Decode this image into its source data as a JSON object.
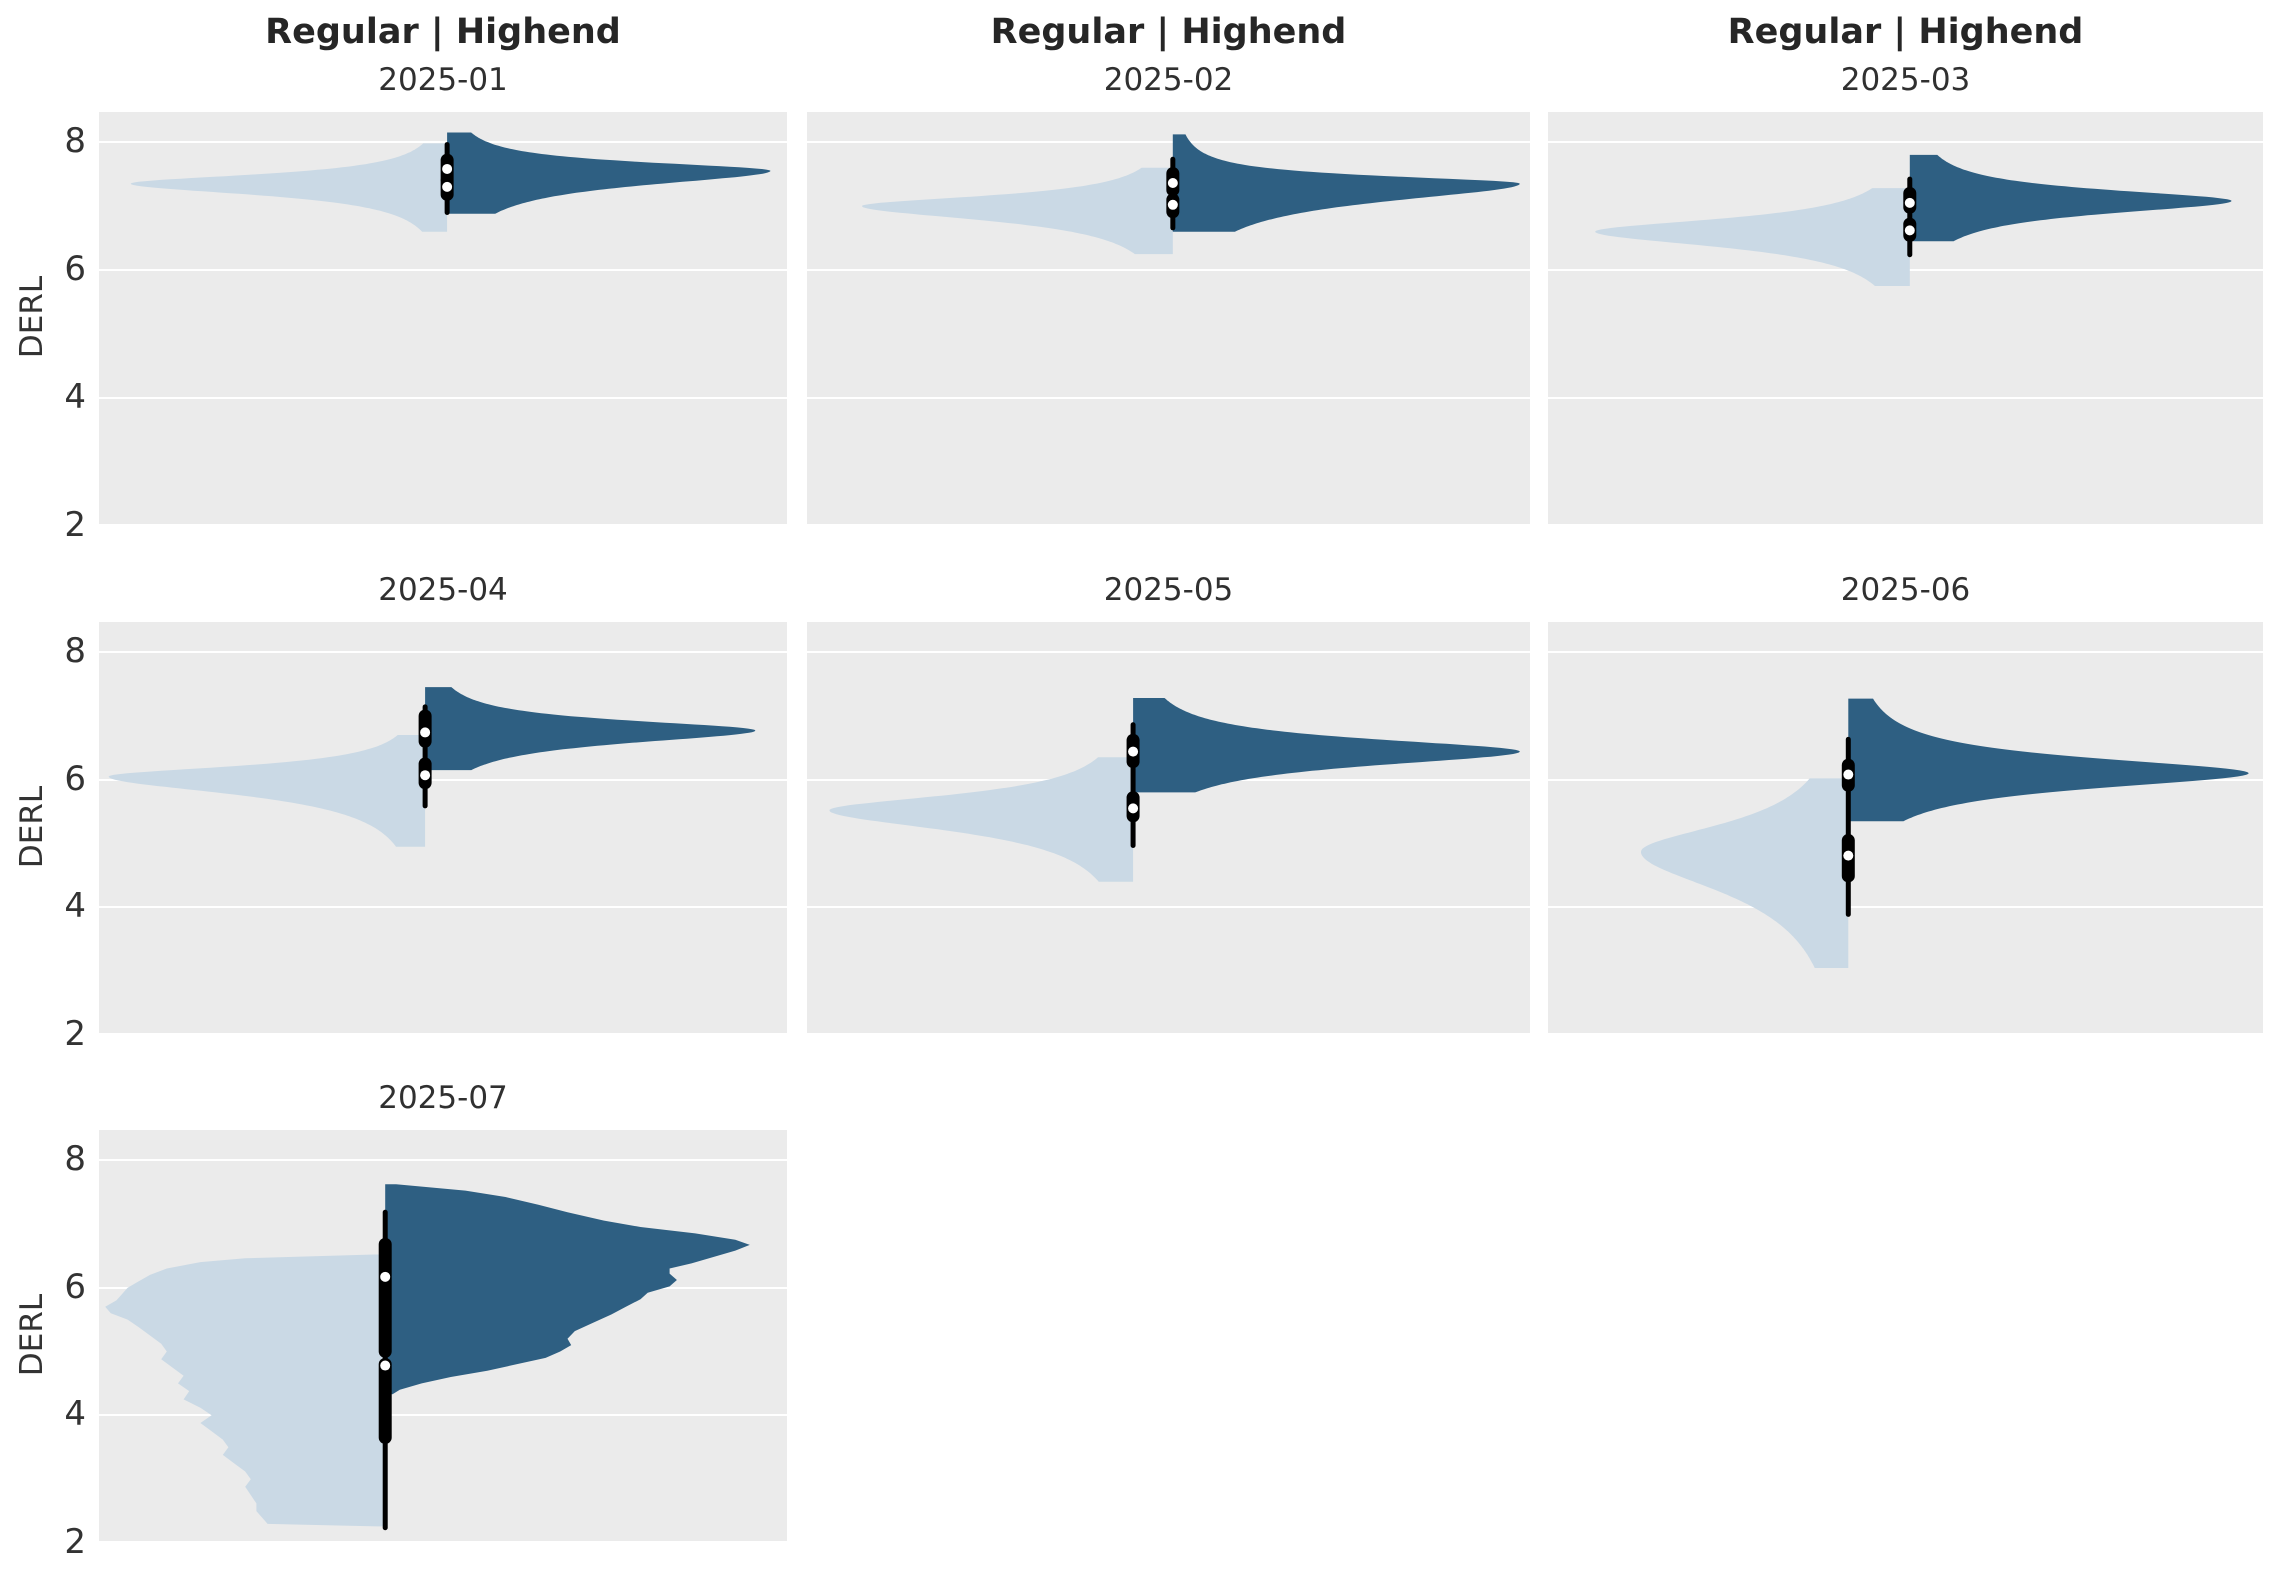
{
  "chart_data": {
    "type": "split_violin_facets",
    "column_titles": [
      "Regular | Highend",
      "Regular | Highend",
      "Regular | Highend"
    ],
    "ylabel": "DERL",
    "ytick_labels": [
      "8",
      "6",
      "4",
      "2"
    ],
    "ytick_values": [
      8,
      6,
      4,
      2
    ],
    "ylim_visible": [
      2.0,
      8.47
    ],
    "grid": "horizontal-white-on-gray",
    "legend_position": "none",
    "series": {
      "left_half": "Regular",
      "right_half": "Highend"
    },
    "colors": {
      "regular_fill": "#cad9e5",
      "highend_fill": "#2e5f82",
      "box": "#000000",
      "median_dot": "#ffffff",
      "panel_bg": "#ebebeb",
      "gridline": "#ffffff",
      "title_text": "#262626",
      "tick_text": "#333333"
    },
    "panels": [
      {
        "subtitle": "2025-01",
        "row": 0,
        "col": 0,
        "center_frac": 0.506,
        "regular": {
          "lo": 6.6,
          "hi": 7.98,
          "peak": 7.35,
          "s_lo": 0.22,
          "s_hi": 0.18,
          "extent_frac": 0.46
        },
        "highend": {
          "lo": 6.88,
          "hi": 8.15,
          "peak": 7.55,
          "s_lo": 0.28,
          "s_hi": 0.17,
          "extent_frac": 0.47
        },
        "box": {
          "whisker": [
            6.86,
            8.0
          ],
          "seg_upper": [
            7.32,
            7.82
          ],
          "seg_lower": [
            7.08,
            7.5
          ],
          "median_highend": 7.58,
          "median_regular": 7.3
        }
      },
      {
        "subtitle": "2025-02",
        "row": 0,
        "col": 1,
        "center_frac": 0.506,
        "regular": {
          "lo": 6.25,
          "hi": 7.6,
          "peak": 7.0,
          "s_lo": 0.28,
          "s_hi": 0.2,
          "extent_frac": 0.43
        },
        "highend": {
          "lo": 6.6,
          "hi": 8.12,
          "peak": 7.35,
          "s_lo": 0.35,
          "s_hi": 0.15,
          "extent_frac": 0.48
        },
        "box": {
          "whisker": [
            6.62,
            7.77
          ],
          "seg_upper": [
            7.15,
            7.61
          ],
          "seg_lower": [
            6.81,
            7.2
          ],
          "median_highend": 7.36,
          "median_regular": 7.02
        }
      },
      {
        "subtitle": "2025-03",
        "row": 0,
        "col": 2,
        "center_frac": 0.506,
        "regular": {
          "lo": 5.75,
          "hi": 7.28,
          "peak": 6.6,
          "s_lo": 0.3,
          "s_hi": 0.25,
          "extent_frac": 0.44
        },
        "highend": {
          "lo": 6.45,
          "hi": 7.8,
          "peak": 7.08,
          "s_lo": 0.25,
          "s_hi": 0.22,
          "extent_frac": 0.45
        },
        "box": {
          "whisker": [
            6.2,
            7.46
          ],
          "seg_upper": [
            6.88,
            7.3
          ],
          "seg_lower": [
            6.44,
            6.82
          ],
          "median_highend": 7.05,
          "median_regular": 6.62
        }
      },
      {
        "subtitle": "2025-04",
        "row": 1,
        "col": 0,
        "center_frac": 0.474,
        "regular": {
          "lo": 4.95,
          "hi": 6.7,
          "peak": 6.05,
          "s_lo": 0.35,
          "s_hi": 0.2,
          "extent_frac": 0.46
        },
        "highend": {
          "lo": 6.15,
          "hi": 7.45,
          "peak": 6.77,
          "s_lo": 0.25,
          "s_hi": 0.2,
          "extent_frac": 0.48
        },
        "box": {
          "whisker": [
            5.55,
            7.18
          ],
          "seg_upper": [
            6.5,
            7.1
          ],
          "seg_lower": [
            5.85,
            6.35
          ],
          "median_highend": 6.74,
          "median_regular": 6.07
        }
      },
      {
        "subtitle": "2025-05",
        "row": 1,
        "col": 1,
        "center_frac": 0.451,
        "regular": {
          "lo": 4.4,
          "hi": 6.35,
          "peak": 5.52,
          "s_lo": 0.4,
          "s_hi": 0.3,
          "extent_frac": 0.42
        },
        "highend": {
          "lo": 5.8,
          "hi": 7.28,
          "peak": 6.44,
          "s_lo": 0.28,
          "s_hi": 0.25,
          "extent_frac": 0.535
        },
        "box": {
          "whisker": [
            4.93,
            6.9
          ],
          "seg_upper": [
            6.18,
            6.72
          ],
          "seg_lower": [
            5.33,
            5.82
          ],
          "median_highend": 6.44,
          "median_regular": 5.55
        }
      },
      {
        "subtitle": "2025-06",
        "row": 1,
        "col": 2,
        "center_frac": 0.42,
        "regular": {
          "lo": 3.05,
          "hi": 6.02,
          "peak": 4.87,
          "s_lo": 0.8,
          "s_hi": 0.55,
          "extent_frac": 0.29
        },
        "highend": {
          "lo": 5.35,
          "hi": 7.27,
          "peak": 6.1,
          "s_lo": 0.3,
          "s_hi": 0.3,
          "extent_frac": 0.56
        },
        "box": {
          "whisker": [
            3.85,
            6.67
          ],
          "seg_upper": [
            5.81,
            6.33
          ],
          "seg_lower": [
            4.39,
            5.15
          ],
          "median_highend": 6.08,
          "median_regular": 4.81
        }
      },
      {
        "subtitle": "2025-07",
        "row": 2,
        "col": 0,
        "center_frac": 0.416,
        "regular": {
          "extent_frac": 0.407,
          "profile": [
            [
              6.52,
              0.04
            ],
            [
              6.46,
              0.5
            ],
            [
              6.4,
              0.66
            ],
            [
              6.3,
              0.78
            ],
            [
              6.2,
              0.84
            ],
            [
              6.1,
              0.88
            ],
            [
              6.0,
              0.92
            ],
            [
              5.9,
              0.94
            ],
            [
              5.8,
              0.96
            ],
            [
              5.7,
              1.0
            ],
            [
              5.6,
              0.98
            ],
            [
              5.5,
              0.92
            ],
            [
              5.38,
              0.88
            ],
            [
              5.25,
              0.84
            ],
            [
              5.12,
              0.8
            ],
            [
              5.0,
              0.78
            ],
            [
              4.88,
              0.8
            ],
            [
              4.75,
              0.76
            ],
            [
              4.62,
              0.72
            ],
            [
              4.5,
              0.74
            ],
            [
              4.38,
              0.7
            ],
            [
              4.25,
              0.72
            ],
            [
              4.12,
              0.66
            ],
            [
              4.0,
              0.62
            ],
            [
              3.88,
              0.66
            ],
            [
              3.75,
              0.62
            ],
            [
              3.62,
              0.58
            ],
            [
              3.5,
              0.56
            ],
            [
              3.38,
              0.58
            ],
            [
              3.25,
              0.54
            ],
            [
              3.12,
              0.5
            ],
            [
              3.0,
              0.48
            ],
            [
              2.88,
              0.5
            ],
            [
              2.75,
              0.48
            ],
            [
              2.62,
              0.46
            ],
            [
              2.5,
              0.46
            ],
            [
              2.4,
              0.44
            ],
            [
              2.3,
              0.42
            ],
            [
              2.26,
              0.03
            ]
          ]
        },
        "highend": {
          "extent_frac": 0.53,
          "profile": [
            [
              7.62,
              0.03
            ],
            [
              7.52,
              0.22
            ],
            [
              7.42,
              0.33
            ],
            [
              7.3,
              0.42
            ],
            [
              7.18,
              0.5
            ],
            [
              7.05,
              0.6
            ],
            [
              6.95,
              0.7
            ],
            [
              6.85,
              0.85
            ],
            [
              6.75,
              0.96
            ],
            [
              6.67,
              1.0
            ],
            [
              6.58,
              0.96
            ],
            [
              6.48,
              0.9
            ],
            [
              6.38,
              0.84
            ],
            [
              6.3,
              0.78
            ],
            [
              6.22,
              0.78
            ],
            [
              6.12,
              0.8
            ],
            [
              6.02,
              0.78
            ],
            [
              5.92,
              0.72
            ],
            [
              5.82,
              0.7
            ],
            [
              5.7,
              0.66
            ],
            [
              5.58,
              0.62
            ],
            [
              5.45,
              0.57
            ],
            [
              5.32,
              0.52
            ],
            [
              5.2,
              0.5
            ],
            [
              5.1,
              0.51
            ],
            [
              5.0,
              0.48
            ],
            [
              4.9,
              0.44
            ],
            [
              4.8,
              0.36
            ],
            [
              4.7,
              0.28
            ],
            [
              4.6,
              0.18
            ],
            [
              4.5,
              0.1
            ],
            [
              4.4,
              0.04
            ],
            [
              4.33,
              0.02
            ]
          ]
        },
        "box": {
          "whisker": [
            2.2,
            7.22
          ],
          "seg_upper": [
            4.9,
            6.78
          ],
          "seg_lower": [
            3.55,
            4.9
          ],
          "median_highend": 6.17,
          "median_regular": 4.78
        }
      }
    ]
  }
}
